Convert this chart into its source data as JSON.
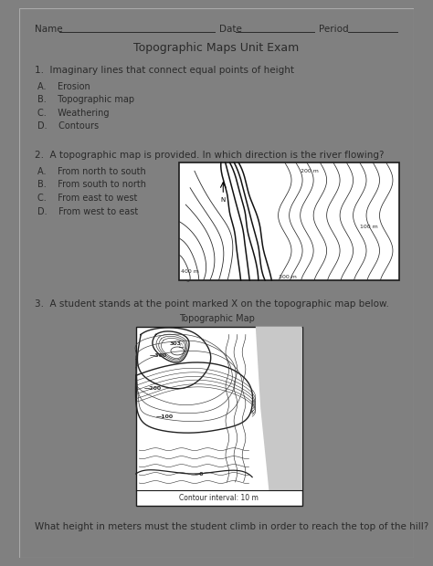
{
  "title": "Topographic Maps Unit Exam",
  "q1_text": "1.  Imaginary lines that connect equal points of height",
  "q1_options": [
    "A.    Erosion",
    "B.    Topographic map",
    "C.    Weathering",
    "D.    Contours"
  ],
  "q2_text": "2.  A topographic map is provided. In which direction is the river flowing?",
  "q2_options": [
    "A.    From north to south",
    "B.    From south to north",
    "C.    From east to west",
    "D.    From west to east"
  ],
  "q3_text": "3.  A student stands at the point marked X on the topographic map below.",
  "q3_map_title": "Topographic Map",
  "q3_caption": "Contour interval: 10 m",
  "q4_text": "What height in meters must the student climb in order to reach the top of the hill?",
  "page_bg": "#ffffff",
  "outer_bg": "#808080",
  "text_color": "#2a2a2a"
}
